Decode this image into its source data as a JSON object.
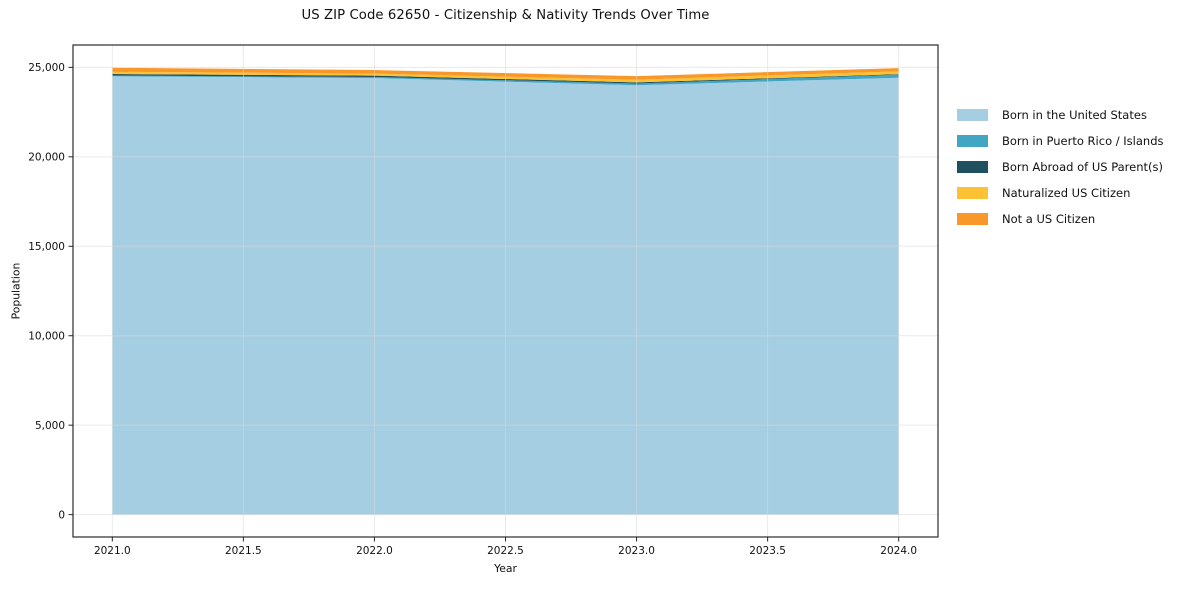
{
  "figure": {
    "title": "US ZIP Code 62650 - Citizenship & Nativity Trends Over Time",
    "xlabel": "Year",
    "ylabel": "Population"
  },
  "chart_data": {
    "type": "area",
    "stacked": true,
    "title": "US ZIP Code 62650 - Citizenship & Nativity Trends Over Time",
    "xlabel": "Year",
    "ylabel": "Population",
    "x": [
      2021,
      2022,
      2023,
      2024
    ],
    "series": [
      {
        "name": "Born in the United States",
        "color": "#a5cee3",
        "values": [
          24500,
          24400,
          24000,
          24420
        ]
      },
      {
        "name": "Born in Puerto Rico / Islands",
        "color": "#41a6c4",
        "values": [
          40,
          60,
          100,
          170
        ]
      },
      {
        "name": "Born Abroad of US Parent(s)",
        "color": "#20505f",
        "values": [
          90,
          80,
          60,
          30
        ]
      },
      {
        "name": "Naturalized US Citizen",
        "color": "#fcc233",
        "values": [
          120,
          110,
          150,
          160
        ]
      },
      {
        "name": "Not a US Citizen",
        "color": "#f8982b",
        "values": [
          230,
          200,
          200,
          180
        ]
      }
    ],
    "totals": [
      24980,
      24850,
      24510,
      24960
    ],
    "xlim": [
      2020.85,
      2024.15
    ],
    "ylim": [
      -1250,
      26250
    ],
    "xticks": [
      2021.0,
      2021.5,
      2022.0,
      2022.5,
      2023.0,
      2023.5,
      2024.0
    ],
    "xtick_labels": [
      "2021.0",
      "2021.5",
      "2022.0",
      "2022.5",
      "2023.0",
      "2023.5",
      "2024.0"
    ],
    "yticks": [
      0,
      5000,
      10000,
      15000,
      20000,
      25000
    ],
    "ytick_labels": [
      "0",
      "5,000",
      "10,000",
      "15,000",
      "20,000",
      "25,000"
    ],
    "grid": true,
    "legend_position": "right",
    "colors": {
      "grid": "#d8d8d8",
      "spine": "#2b2b2b",
      "tick": "#262626",
      "text": "#111111",
      "background": "#ffffff"
    }
  }
}
